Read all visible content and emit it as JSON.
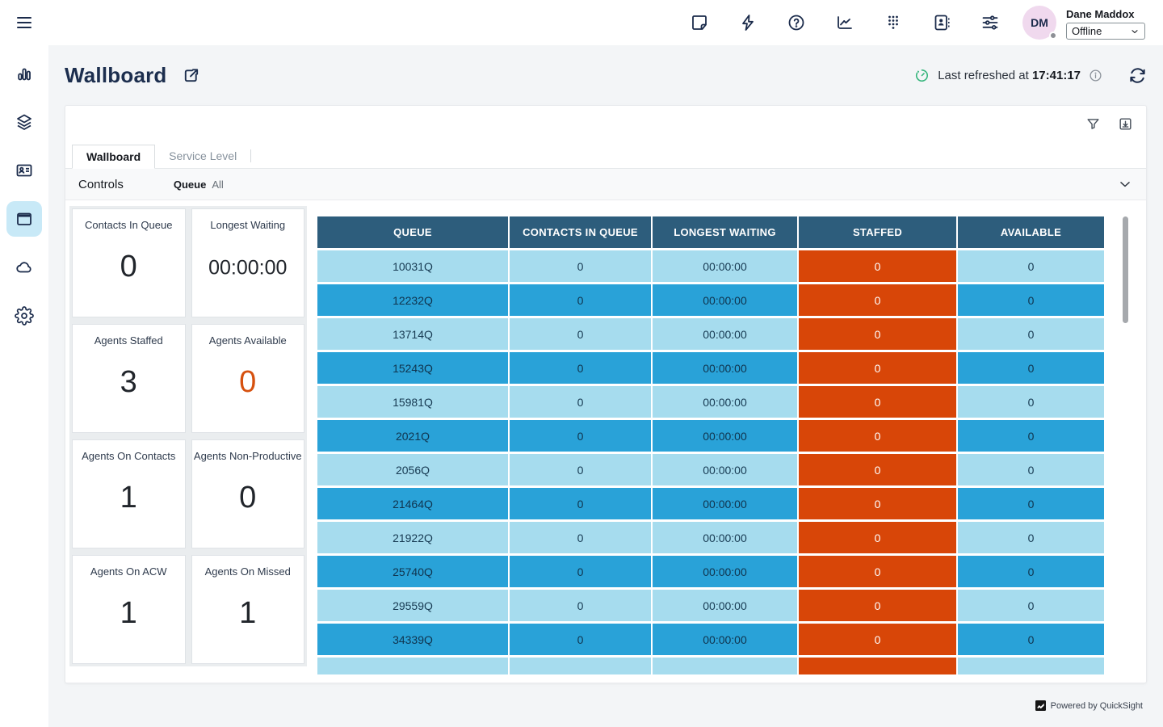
{
  "topbar": {
    "icons": [
      "note-icon",
      "lightning-icon",
      "help-icon",
      "metrics-icon",
      "dialpad-icon",
      "directory-icon",
      "sliders-icon"
    ],
    "user": {
      "initials": "DM",
      "name": "Dane Maddox",
      "status": "Offline"
    }
  },
  "sidebar": {
    "items": [
      "analytics",
      "layers",
      "contact-card",
      "wallboard",
      "cloud",
      "settings"
    ],
    "selected": "wallboard"
  },
  "header": {
    "title": "Wallboard",
    "refresh_prefix": "Last refreshed at ",
    "refresh_time": "17:41:17"
  },
  "panel": {
    "tabs": [
      {
        "label": "Wallboard",
        "active": true
      },
      {
        "label": "Service Level",
        "active": false
      }
    ],
    "controls_label": "Controls",
    "queue_label": "Queue",
    "queue_value": "All"
  },
  "kpis": [
    {
      "label": "Contacts In Queue",
      "value": "0"
    },
    {
      "label": "Longest Waiting",
      "value": "00:00:00"
    },
    {
      "label": "Agents Staffed",
      "value": "3"
    },
    {
      "label": "Agents Available",
      "value": "0",
      "accent": true
    },
    {
      "label": "Agents On Contacts",
      "value": "1"
    },
    {
      "label": "Agents Non-Productive",
      "value": "0"
    },
    {
      "label": "Agents On ACW",
      "value": "1"
    },
    {
      "label": "Agents On Missed",
      "value": "1"
    }
  ],
  "table": {
    "headers": [
      "QUEUE",
      "CONTACTS IN QUEUE",
      "LONGEST WAITING",
      "STAFFED",
      "AVAILABLE"
    ],
    "rows": [
      [
        "10031Q",
        "0",
        "00:00:00",
        "0",
        "0"
      ],
      [
        "12232Q",
        "0",
        "00:00:00",
        "0",
        "0"
      ],
      [
        "13714Q",
        "0",
        "00:00:00",
        "0",
        "0"
      ],
      [
        "15243Q",
        "0",
        "00:00:00",
        "0",
        "0"
      ],
      [
        "15981Q",
        "0",
        "00:00:00",
        "0",
        "0"
      ],
      [
        "2021Q",
        "0",
        "00:00:00",
        "0",
        "0"
      ],
      [
        "2056Q",
        "0",
        "00:00:00",
        "0",
        "0"
      ],
      [
        "21464Q",
        "0",
        "00:00:00",
        "0",
        "0"
      ],
      [
        "21922Q",
        "0",
        "00:00:00",
        "0",
        "0"
      ],
      [
        "25740Q",
        "0",
        "00:00:00",
        "0",
        "0"
      ],
      [
        "29559Q",
        "0",
        "00:00:00",
        "0",
        "0"
      ],
      [
        "34339Q",
        "0",
        "00:00:00",
        "0",
        "0"
      ],
      [
        "",
        "",
        "",
        "",
        ""
      ]
    ]
  },
  "footer": {
    "powered_by": "Powered by QuickSight"
  },
  "colors": {
    "accent_orange": "#d84608",
    "table_header": "#2d5d7c",
    "row_light": "#a6dcee",
    "row_dark": "#29a2d8",
    "sidebar_selected_bg": "#c8e9f7",
    "green_timer": "#35b57c",
    "icon_navy": "#1b2b4b"
  }
}
